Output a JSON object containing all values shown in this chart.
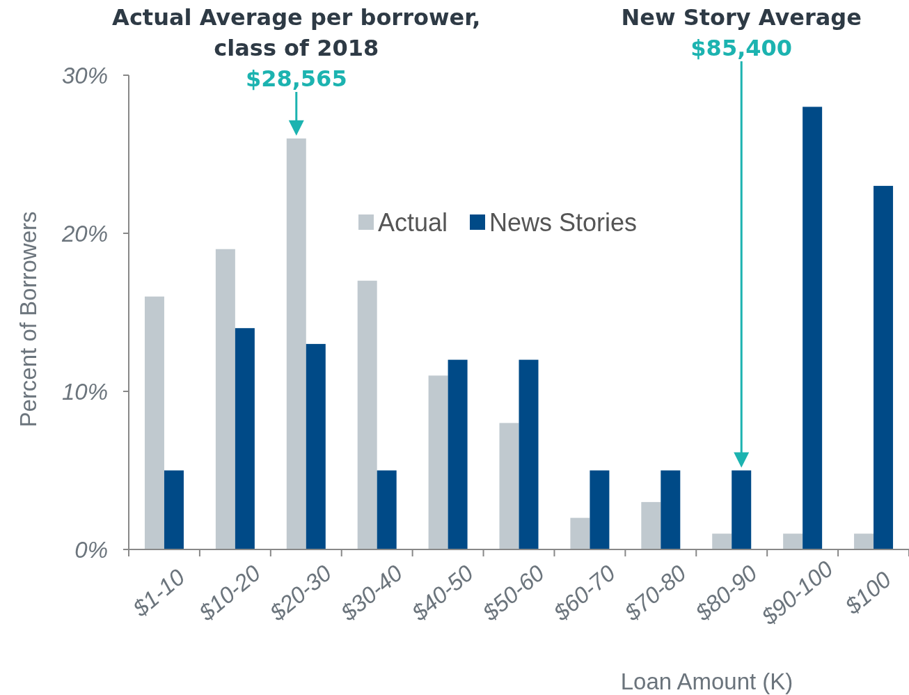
{
  "chart_data": {
    "type": "bar",
    "categories": [
      "$1-10",
      "$10-20",
      "$20-30",
      "$30-40",
      "$40-50",
      "$50-60",
      "$60-70",
      "$70-80",
      "$80-90",
      "$90-100",
      "$100"
    ],
    "series": [
      {
        "name": "Actual",
        "color": "#c0c9cf",
        "values": [
          16,
          19,
          26,
          17,
          11,
          8,
          2,
          3,
          1,
          1,
          1
        ]
      },
      {
        "name": "News Stories",
        "color": "#004a87",
        "values": [
          5,
          14,
          13,
          5,
          12,
          12,
          5,
          5,
          5,
          28,
          23
        ]
      }
    ],
    "ylim": [
      0,
      30
    ],
    "yticks": [
      {
        "value": 0,
        "label": "0%"
      },
      {
        "value": 10,
        "label": "10%"
      },
      {
        "value": 20,
        "label": "20%"
      },
      {
        "value": 30,
        "label": "30%"
      }
    ],
    "xlabel": "Loan Amount (K)",
    "ylabel": "Percent of Borrowers",
    "legend": "top",
    "grid": false,
    "annotations": [
      "Actual Average per borrower, class of 2018",
      "$28,565",
      "New Story Average",
      "$85,400"
    ]
  }
}
